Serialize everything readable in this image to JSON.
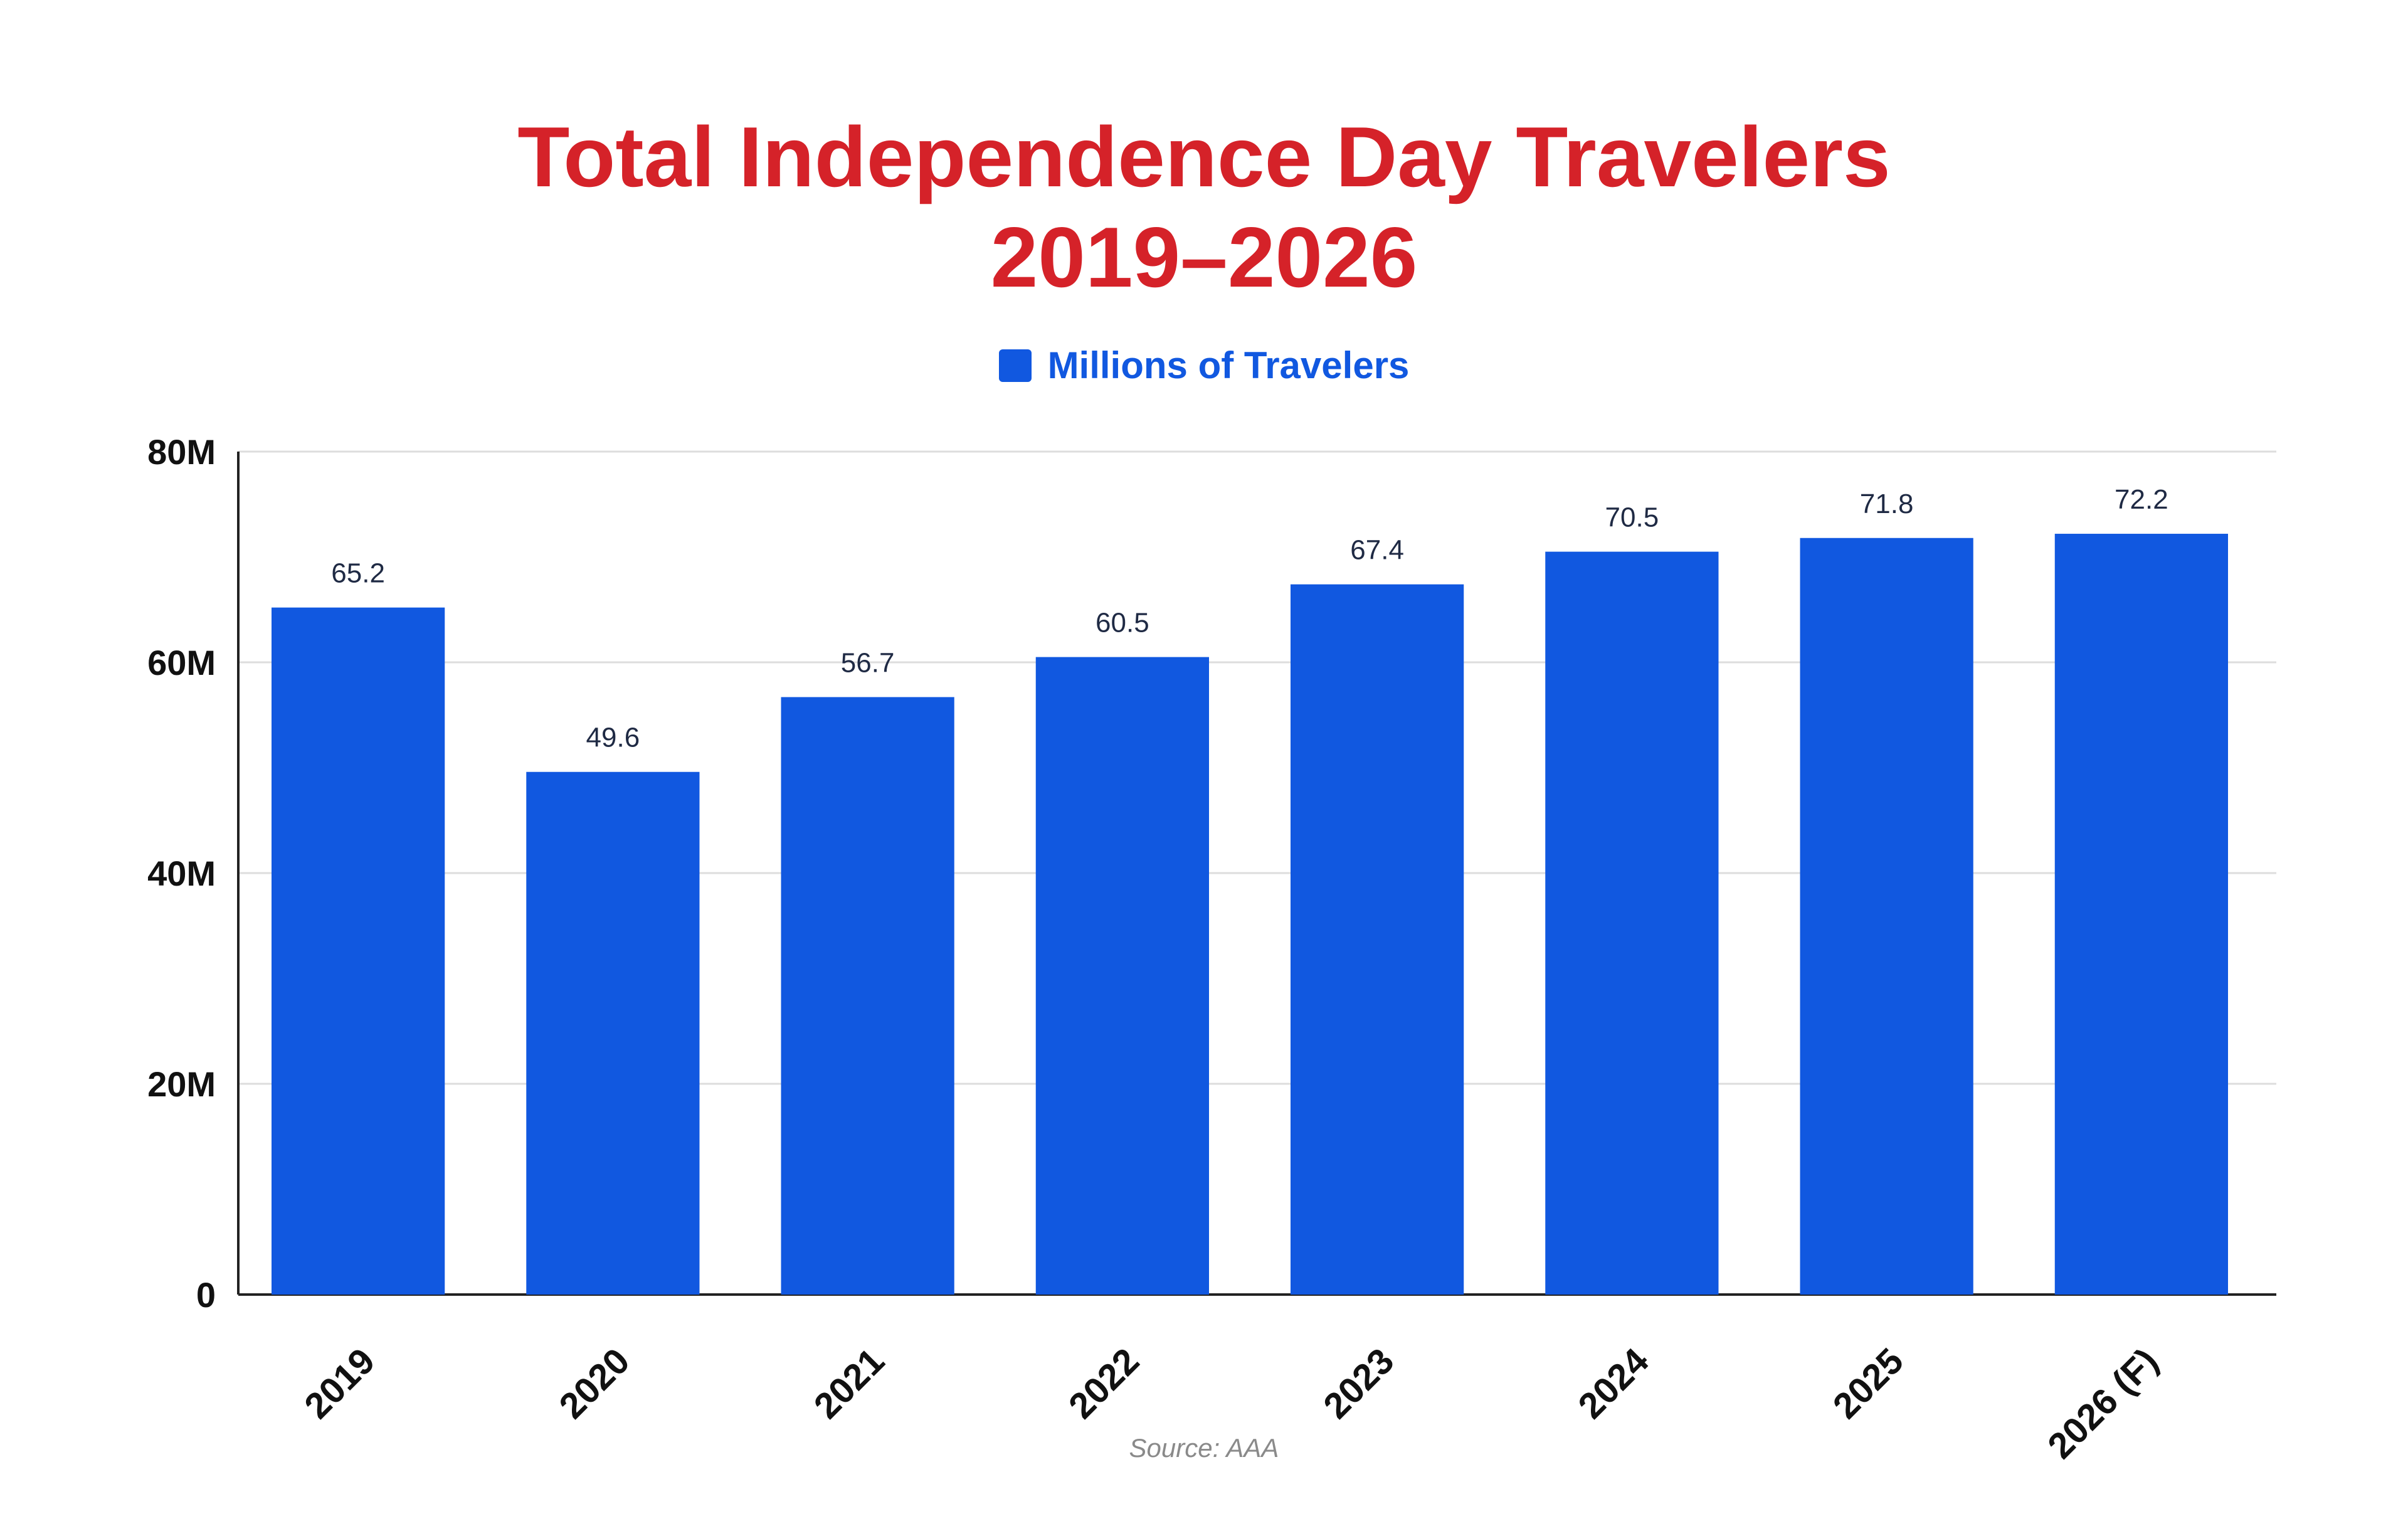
{
  "chart_data": {
    "type": "bar",
    "title_line1": "Total Independence Day Travelers",
    "title_line2": "2019–2026",
    "legend": {
      "label": "Millions of Travelers",
      "color": "#1158E0",
      "position": "top-center"
    },
    "categories": [
      "2019",
      "2020",
      "2021",
      "2022",
      "2023",
      "2024",
      "2025",
      "2026 (F)"
    ],
    "series": [
      {
        "name": "Millions of Travelers",
        "values": [
          65.2,
          49.6,
          56.7,
          60.5,
          67.4,
          70.5,
          71.8,
          72.2
        ],
        "labels": [
          "65.2",
          "49.6",
          "56.7",
          "60.5",
          "67.4",
          "70.5",
          "71.8",
          "72.2"
        ]
      }
    ],
    "ylim": [
      0,
      80
    ],
    "yticks": [
      0,
      20,
      40,
      60,
      80
    ],
    "ytick_labels": [
      "0",
      "20M",
      "40M",
      "60M",
      "80M"
    ],
    "grid": true,
    "bar_color": "#1158E0",
    "source": "Source: AAA"
  }
}
